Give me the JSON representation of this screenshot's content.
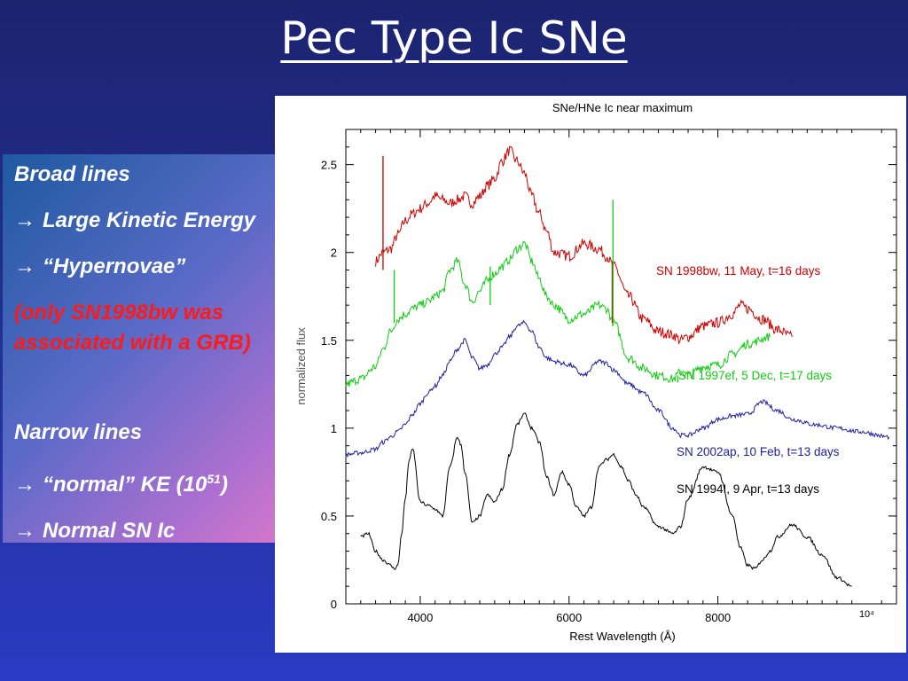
{
  "slide": {
    "title": "Pec Type Ic SNe"
  },
  "panel": {
    "broad_heading": "Broad lines",
    "arrow_glyph": "→",
    "broad_point1": "Large Kinetic Energy",
    "broad_point2": "“Hypernovae”",
    "note_line1": "(only SN1998bw was",
    "note_line2": "associated with a GRB)",
    "narrow_heading": "Narrow lines",
    "narrow_point1_prefix": "“normal” KE (10",
    "narrow_point1_exp": "51",
    "narrow_point1_suffix": ")",
    "narrow_point2": "Normal SN Ic",
    "text_color": "#ffffff",
    "note_color": "#ff1a1a"
  },
  "chart_data": {
    "type": "line",
    "title": "SNe/HNe Ic near maximum",
    "xlabel": "Rest Wavelength (Å)",
    "ylabel": "normalized flux",
    "xlim": [
      3000,
      10400
    ],
    "ylim": [
      0,
      2.7
    ],
    "xticks": [
      4000,
      6000,
      8000
    ],
    "xtick_labels": [
      "4000",
      "6000",
      "8000"
    ],
    "x_last_tick_label": "10⁴",
    "yticks": [
      0,
      0.5,
      1,
      1.5,
      2,
      2.5
    ],
    "ytick_labels": [
      "0",
      "0.5",
      "1",
      "1.5",
      "2",
      "2.5"
    ],
    "grid": false,
    "series": [
      {
        "name": "SN 1998bw, 11 May, t=16 days",
        "color": "#cc0000",
        "noise": 0.06,
        "x": [
          3400,
          3500,
          3600,
          3700,
          3800,
          3900,
          4000,
          4100,
          4200,
          4300,
          4400,
          4500,
          4600,
          4700,
          4800,
          4900,
          5000,
          5100,
          5200,
          5300,
          5400,
          5500,
          5600,
          5700,
          5800,
          6000,
          6200,
          6400,
          6500,
          6600,
          6800,
          7000,
          7200,
          7400,
          7500,
          7600,
          7800,
          8000,
          8200,
          8300,
          8400,
          8600,
          8800,
          9000
        ],
        "y": [
          1.95,
          2.0,
          2.02,
          2.1,
          2.18,
          2.22,
          2.25,
          2.28,
          2.32,
          2.3,
          2.28,
          2.3,
          2.32,
          2.28,
          2.32,
          2.38,
          2.42,
          2.52,
          2.58,
          2.52,
          2.45,
          2.32,
          2.22,
          2.12,
          2.0,
          1.98,
          2.05,
          2.02,
          1.98,
          1.92,
          1.75,
          1.62,
          1.55,
          1.53,
          1.5,
          1.52,
          1.58,
          1.6,
          1.65,
          1.7,
          1.68,
          1.62,
          1.56,
          1.52
        ]
      },
      {
        "name": "SN 1997ef, 5 Dec, t=17 days",
        "color": "#10cc10",
        "noise": 0.05,
        "x": [
          3000,
          3200,
          3400,
          3500,
          3600,
          3700,
          3800,
          3900,
          4000,
          4100,
          4200,
          4300,
          4400,
          4500,
          4600,
          4700,
          4800,
          4900,
          5000,
          5100,
          5200,
          5300,
          5400,
          5500,
          5600,
          5700,
          5800,
          6000,
          6200,
          6400,
          6500,
          6600,
          6800,
          7000,
          7200,
          7400,
          7500,
          7600,
          7800,
          8000,
          8200,
          8400,
          8700
        ],
        "y": [
          1.25,
          1.28,
          1.35,
          1.45,
          1.55,
          1.62,
          1.65,
          1.68,
          1.7,
          1.72,
          1.75,
          1.78,
          1.9,
          1.95,
          1.82,
          1.72,
          1.78,
          1.84,
          1.88,
          1.92,
          1.96,
          2.02,
          2.05,
          1.95,
          1.85,
          1.75,
          1.7,
          1.62,
          1.65,
          1.7,
          1.68,
          1.6,
          1.4,
          1.34,
          1.3,
          1.28,
          1.32,
          1.3,
          1.35,
          1.36,
          1.42,
          1.48,
          1.52
        ]
      },
      {
        "name": "SN 2002ap, 10 Feb, t=13 days",
        "color": "#2020a0",
        "noise": 0.025,
        "x": [
          3000,
          3200,
          3400,
          3500,
          3600,
          3700,
          3800,
          3900,
          4000,
          4100,
          4200,
          4300,
          4400,
          4500,
          4600,
          4700,
          4800,
          4900,
          5000,
          5100,
          5200,
          5300,
          5400,
          5500,
          5600,
          5700,
          5800,
          6000,
          6200,
          6400,
          6500,
          6600,
          6800,
          7000,
          7200,
          7400,
          7500,
          7600,
          7800,
          8000,
          8200,
          8400,
          8600,
          8800,
          9000,
          9300,
          9600,
          9900,
          10300
        ],
        "y": [
          0.85,
          0.86,
          0.88,
          0.92,
          0.95,
          0.98,
          1.02,
          1.08,
          1.14,
          1.2,
          1.24,
          1.3,
          1.38,
          1.45,
          1.5,
          1.4,
          1.34,
          1.36,
          1.42,
          1.46,
          1.52,
          1.58,
          1.6,
          1.55,
          1.46,
          1.4,
          1.38,
          1.36,
          1.3,
          1.38,
          1.37,
          1.33,
          1.25,
          1.2,
          1.1,
          1.0,
          0.96,
          0.96,
          1.0,
          1.05,
          1.07,
          1.08,
          1.15,
          1.1,
          1.05,
          1.02,
          1.0,
          0.98,
          0.95
        ]
      },
      {
        "name": "SN 1994I, 9 Apr, t=13 days",
        "color": "#000000",
        "noise": 0.018,
        "x": [
          3200,
          3300,
          3400,
          3500,
          3600,
          3650,
          3700,
          3750,
          3800,
          3850,
          3900,
          4000,
          4100,
          4200,
          4300,
          4400,
          4500,
          4550,
          4600,
          4700,
          4800,
          4900,
          5000,
          5100,
          5200,
          5300,
          5400,
          5500,
          5600,
          5700,
          5800,
          5900,
          6000,
          6100,
          6200,
          6300,
          6400,
          6500,
          6600,
          6700,
          6800,
          6900,
          7000,
          7200,
          7400,
          7500,
          7600,
          7800,
          8000,
          8200,
          8300,
          8400,
          8500,
          8600,
          8700,
          8800,
          9000,
          9200,
          9400,
          9600,
          9800
        ],
        "y": [
          0.38,
          0.4,
          0.3,
          0.25,
          0.22,
          0.2,
          0.22,
          0.4,
          0.6,
          0.82,
          0.88,
          0.58,
          0.56,
          0.54,
          0.5,
          0.78,
          0.95,
          0.9,
          0.75,
          0.46,
          0.5,
          0.62,
          0.58,
          0.65,
          0.85,
          1.02,
          1.08,
          1.0,
          0.92,
          0.72,
          0.62,
          0.75,
          0.68,
          0.55,
          0.5,
          0.55,
          0.78,
          0.82,
          0.85,
          0.78,
          0.7,
          0.62,
          0.55,
          0.44,
          0.4,
          0.44,
          0.6,
          0.78,
          0.75,
          0.5,
          0.32,
          0.22,
          0.2,
          0.25,
          0.3,
          0.38,
          0.45,
          0.38,
          0.28,
          0.15,
          0.1
        ]
      }
    ],
    "spikes": [
      {
        "series": 0,
        "x": 3500,
        "y": 2.55,
        "base": 1.9
      },
      {
        "series": 0,
        "x": 6580,
        "y": 1.95,
        "base": 1.6
      },
      {
        "series": 1,
        "x": 3650,
        "y": 1.9,
        "base": 1.6
      },
      {
        "series": 1,
        "x": 4940,
        "y": 1.92,
        "base": 1.7
      },
      {
        "series": 1,
        "x": 6590,
        "y": 2.3,
        "base": 1.62
      },
      {
        "series": 1,
        "x": 7460,
        "y": 1.26,
        "base": 1.3
      }
    ],
    "legend_labels": [
      {
        "text": "SN 1998bw, 11 May, t=16 days",
        "color": "#cc0000"
      },
      {
        "text": "SN 1997ef, 5 Dec, t=17 days",
        "color": "#10cc10"
      },
      {
        "text": "SN 2002ap, 10 Feb, t=13 days",
        "color": "#2020a0"
      },
      {
        "text": "SN 1994I, 9 Apr, t=13 days",
        "color": "#000000"
      }
    ]
  }
}
